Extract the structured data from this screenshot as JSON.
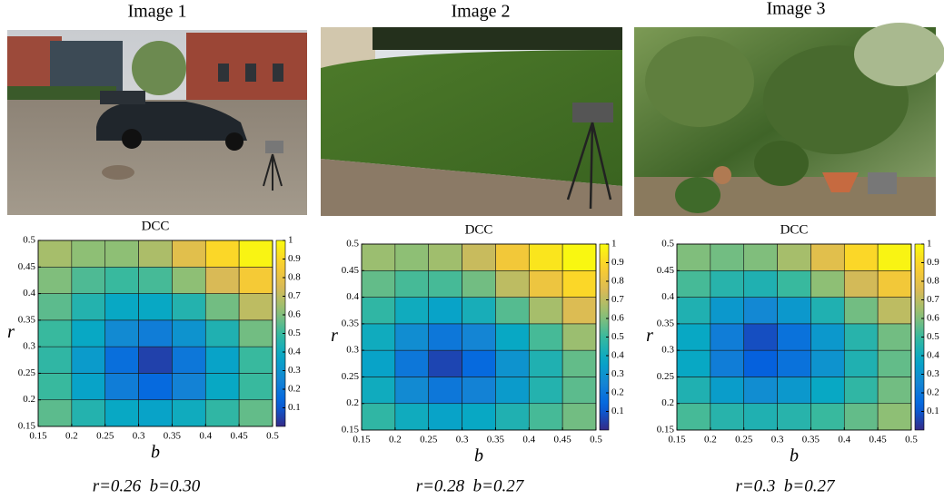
{
  "images": [
    {
      "title": "Image 1"
    },
    {
      "title": "Image 2"
    },
    {
      "title": "Image 3"
    }
  ],
  "chart_data": [
    {
      "type": "heatmap",
      "title": "DCC",
      "xlabel": "b",
      "ylabel": "r",
      "caption": "r=0.26  b=0.30",
      "x": [
        0.175,
        0.225,
        0.275,
        0.325,
        0.375,
        0.425,
        0.475
      ],
      "y": [
        0.175,
        0.225,
        0.275,
        0.325,
        0.375,
        0.425,
        0.475
      ],
      "values": [
        [
          0.55,
          0.45,
          0.38,
          0.36,
          0.4,
          0.48,
          0.56
        ],
        [
          0.5,
          0.36,
          0.22,
          0.15,
          0.24,
          0.38,
          0.5
        ],
        [
          0.48,
          0.33,
          0.17,
          0.05,
          0.2,
          0.36,
          0.5
        ],
        [
          0.5,
          0.38,
          0.27,
          0.22,
          0.3,
          0.44,
          0.58
        ],
        [
          0.55,
          0.45,
          0.38,
          0.38,
          0.45,
          0.58,
          0.7
        ],
        [
          0.6,
          0.53,
          0.5,
          0.52,
          0.62,
          0.75,
          0.85
        ],
        [
          0.66,
          0.62,
          0.62,
          0.67,
          0.78,
          0.9,
          0.98
        ]
      ],
      "xlim": [
        0.15,
        0.5
      ],
      "ylim": [
        0.15,
        0.5
      ],
      "xticks": [
        0.15,
        0.2,
        0.25,
        0.3,
        0.35,
        0.4,
        0.45,
        0.5
      ],
      "yticks": [
        0.15,
        0.2,
        0.25,
        0.3,
        0.35,
        0.4,
        0.45,
        0.5
      ],
      "colormap": "parula",
      "clim": [
        0,
        1
      ],
      "cticks": [
        0.1,
        0.2,
        0.3,
        0.4,
        0.5,
        0.6,
        0.7,
        0.8,
        0.9,
        1
      ]
    },
    {
      "type": "heatmap",
      "title": "DCC",
      "xlabel": "b",
      "ylabel": "r",
      "caption": "r=0.28  b=0.27",
      "x": [
        0.175,
        0.225,
        0.275,
        0.325,
        0.375,
        0.425,
        0.475
      ],
      "y": [
        0.175,
        0.225,
        0.275,
        0.325,
        0.375,
        0.425,
        0.475
      ],
      "values": [
        [
          0.48,
          0.4,
          0.36,
          0.38,
          0.44,
          0.52,
          0.58
        ],
        [
          0.4,
          0.27,
          0.2,
          0.24,
          0.33,
          0.45,
          0.55
        ],
        [
          0.36,
          0.2,
          0.06,
          0.15,
          0.3,
          0.44,
          0.56
        ],
        [
          0.4,
          0.28,
          0.2,
          0.25,
          0.38,
          0.52,
          0.64
        ],
        [
          0.48,
          0.4,
          0.36,
          0.42,
          0.54,
          0.66,
          0.76
        ],
        [
          0.56,
          0.52,
          0.52,
          0.58,
          0.7,
          0.82,
          0.9
        ],
        [
          0.64,
          0.62,
          0.65,
          0.72,
          0.84,
          0.94,
          0.99
        ]
      ],
      "xlim": [
        0.15,
        0.5
      ],
      "ylim": [
        0.15,
        0.5
      ],
      "xticks": [
        0.15,
        0.2,
        0.25,
        0.3,
        0.35,
        0.4,
        0.45,
        0.5
      ],
      "yticks": [
        0.15,
        0.2,
        0.25,
        0.3,
        0.35,
        0.4,
        0.45,
        0.5
      ],
      "colormap": "parula",
      "clim": [
        0,
        1
      ],
      "cticks": [
        0.1,
        0.2,
        0.3,
        0.4,
        0.5,
        0.6,
        0.7,
        0.8,
        0.9,
        1
      ]
    },
    {
      "type": "heatmap",
      "title": "DCC",
      "xlabel": "b",
      "ylabel": "r",
      "caption": "r=0.3  b=0.27",
      "x": [
        0.175,
        0.225,
        0.275,
        0.325,
        0.375,
        0.425,
        0.475
      ],
      "y": [
        0.175,
        0.225,
        0.275,
        0.325,
        0.375,
        0.425,
        0.475
      ],
      "values": [
        [
          0.52,
          0.46,
          0.44,
          0.46,
          0.5,
          0.56,
          0.62
        ],
        [
          0.44,
          0.34,
          0.28,
          0.32,
          0.38,
          0.48,
          0.58
        ],
        [
          0.38,
          0.22,
          0.12,
          0.18,
          0.3,
          0.44,
          0.56
        ],
        [
          0.38,
          0.22,
          0.08,
          0.18,
          0.32,
          0.46,
          0.58
        ],
        [
          0.44,
          0.32,
          0.26,
          0.32,
          0.44,
          0.58,
          0.7
        ],
        [
          0.52,
          0.46,
          0.44,
          0.5,
          0.62,
          0.74,
          0.84
        ],
        [
          0.6,
          0.58,
          0.6,
          0.66,
          0.78,
          0.9,
          0.98
        ]
      ],
      "xlim": [
        0.15,
        0.5
      ],
      "ylim": [
        0.15,
        0.5
      ],
      "xticks": [
        0.15,
        0.2,
        0.25,
        0.3,
        0.35,
        0.4,
        0.45,
        0.5
      ],
      "yticks": [
        0.15,
        0.2,
        0.25,
        0.3,
        0.35,
        0.4,
        0.45,
        0.5
      ],
      "colormap": "parula",
      "clim": [
        0,
        1
      ],
      "cticks": [
        0.1,
        0.2,
        0.3,
        0.4,
        0.5,
        0.6,
        0.7,
        0.8,
        0.9,
        1
      ]
    }
  ]
}
